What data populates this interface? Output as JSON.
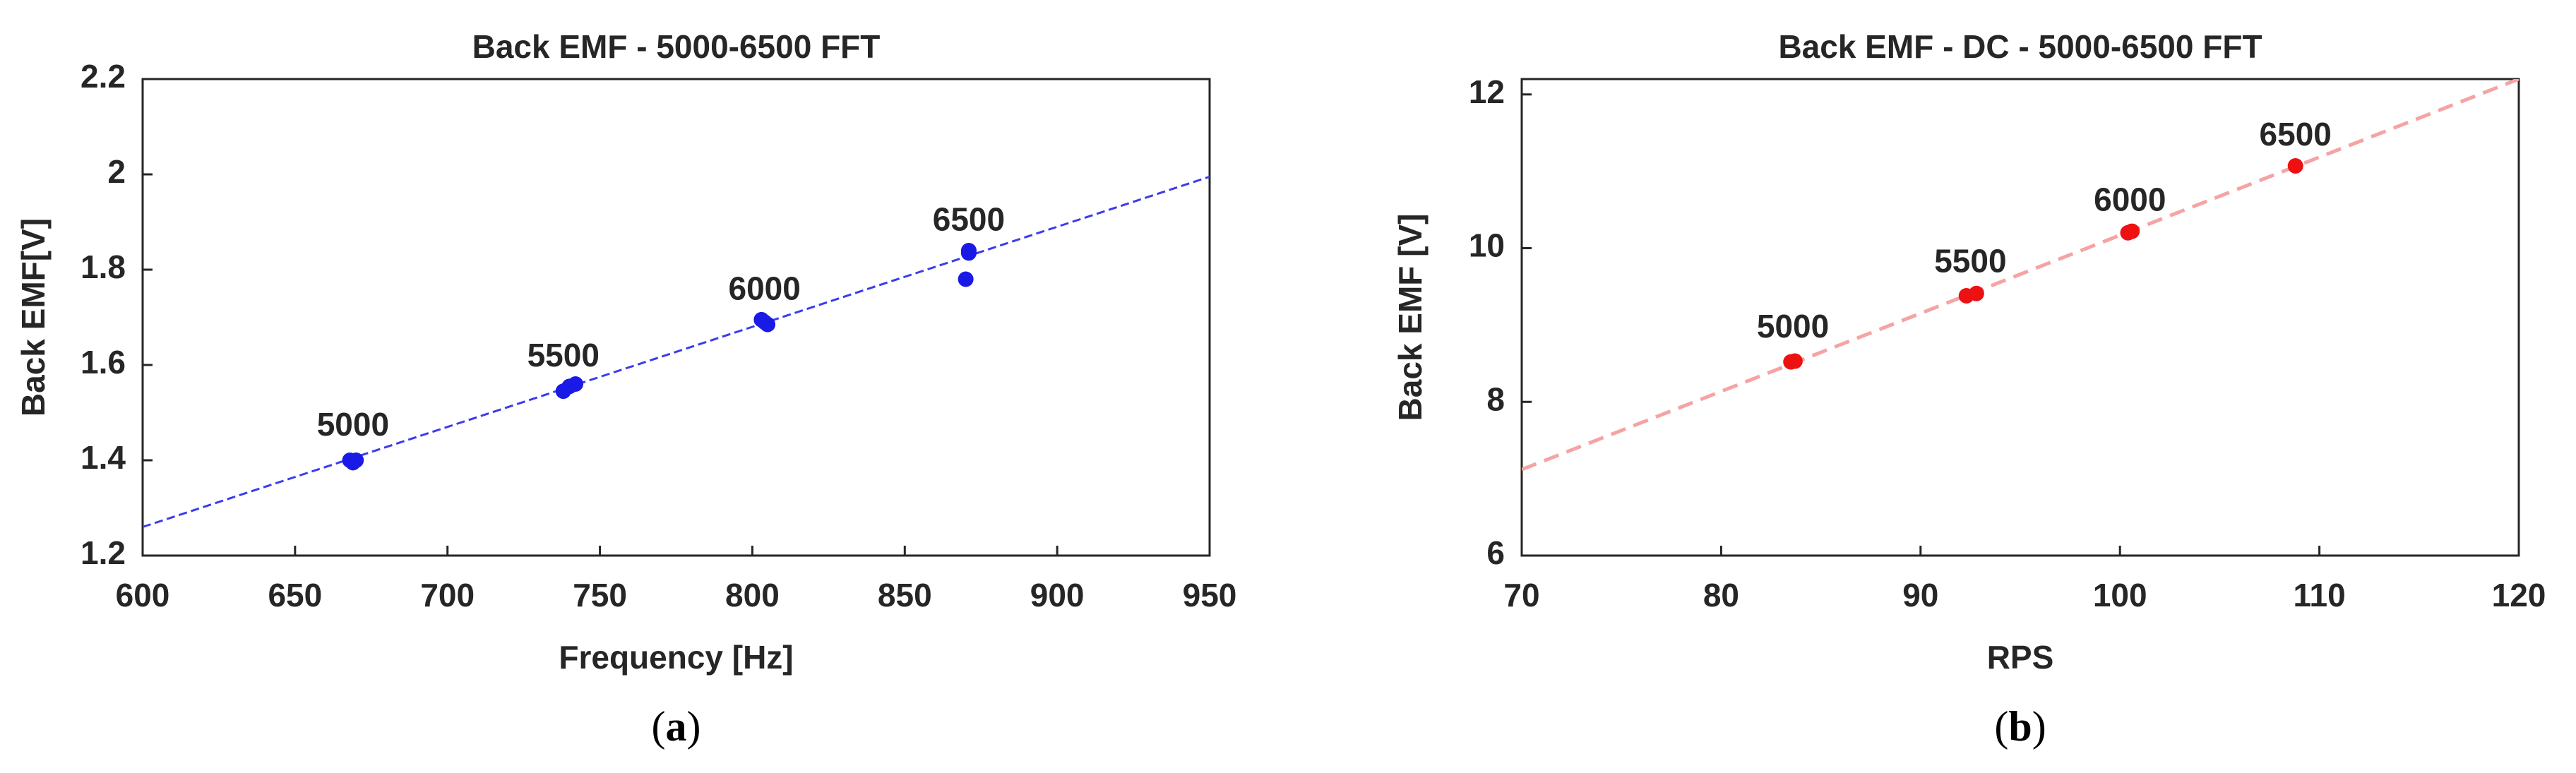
{
  "chart_data": [
    {
      "type": "scatter",
      "title": "Back EMF - 5000-6500 FFT",
      "xlabel": "Frequency [Hz]",
      "ylabel": "Back EMF[V]",
      "caption_label": "a",
      "xlim": [
        600,
        950
      ],
      "ylim": [
        1.2,
        2.2
      ],
      "xticks": [
        600,
        650,
        700,
        750,
        800,
        850,
        900,
        950
      ],
      "yticks": [
        1.2,
        1.4,
        1.6,
        1.8,
        2,
        2.2
      ],
      "series": [
        {
          "color": "#1a1ae6",
          "x": [
            668,
            670,
            669,
            738,
            742,
            740,
            803,
            805,
            804,
            871,
            870,
            871
          ],
          "y": [
            1.4,
            1.4,
            1.395,
            1.545,
            1.56,
            1.555,
            1.695,
            1.685,
            1.69,
            1.84,
            1.78,
            1.835
          ]
        }
      ],
      "trendline": {
        "color": "#3b3bf0",
        "x": [
          600,
          950
        ],
        "y": [
          1.26,
          1.995
        ]
      },
      "annotations": [
        {
          "text": "5000",
          "x": 669,
          "y": 1.47
        },
        {
          "text": "5500",
          "x": 738,
          "y": 1.615
        },
        {
          "text": "6000",
          "x": 804,
          "y": 1.755
        },
        {
          "text": "6500",
          "x": 871,
          "y": 1.9
        }
      ]
    },
    {
      "type": "scatter",
      "title": "Back EMF - DC - 5000-6500 FFT",
      "xlabel": "RPS",
      "ylabel": "Back EMF [V]",
      "caption_label": "b",
      "xlim": [
        70,
        120
      ],
      "ylim": [
        6,
        12.2
      ],
      "xticks": [
        70,
        80,
        90,
        100,
        110,
        120
      ],
      "yticks": [
        6,
        8,
        10,
        12
      ],
      "series": [
        {
          "color": "#ee1111",
          "x": [
            83.5,
            83.7,
            92.3,
            92.8,
            100.4,
            100.6,
            108.8
          ],
          "y": [
            8.52,
            8.53,
            9.38,
            9.41,
            10.2,
            10.22,
            11.07
          ]
        }
      ],
      "trendline": {
        "color": "#f5a3a3",
        "x": [
          70,
          120
        ],
        "y": [
          7.12,
          12.2
        ]
      },
      "annotations": [
        {
          "text": "5000",
          "x": 83.6,
          "y": 8.95
        },
        {
          "text": "5500",
          "x": 92.5,
          "y": 9.8
        },
        {
          "text": "6000",
          "x": 100.5,
          "y": 10.6
        },
        {
          "text": "6500",
          "x": 108.8,
          "y": 11.45
        }
      ]
    }
  ]
}
